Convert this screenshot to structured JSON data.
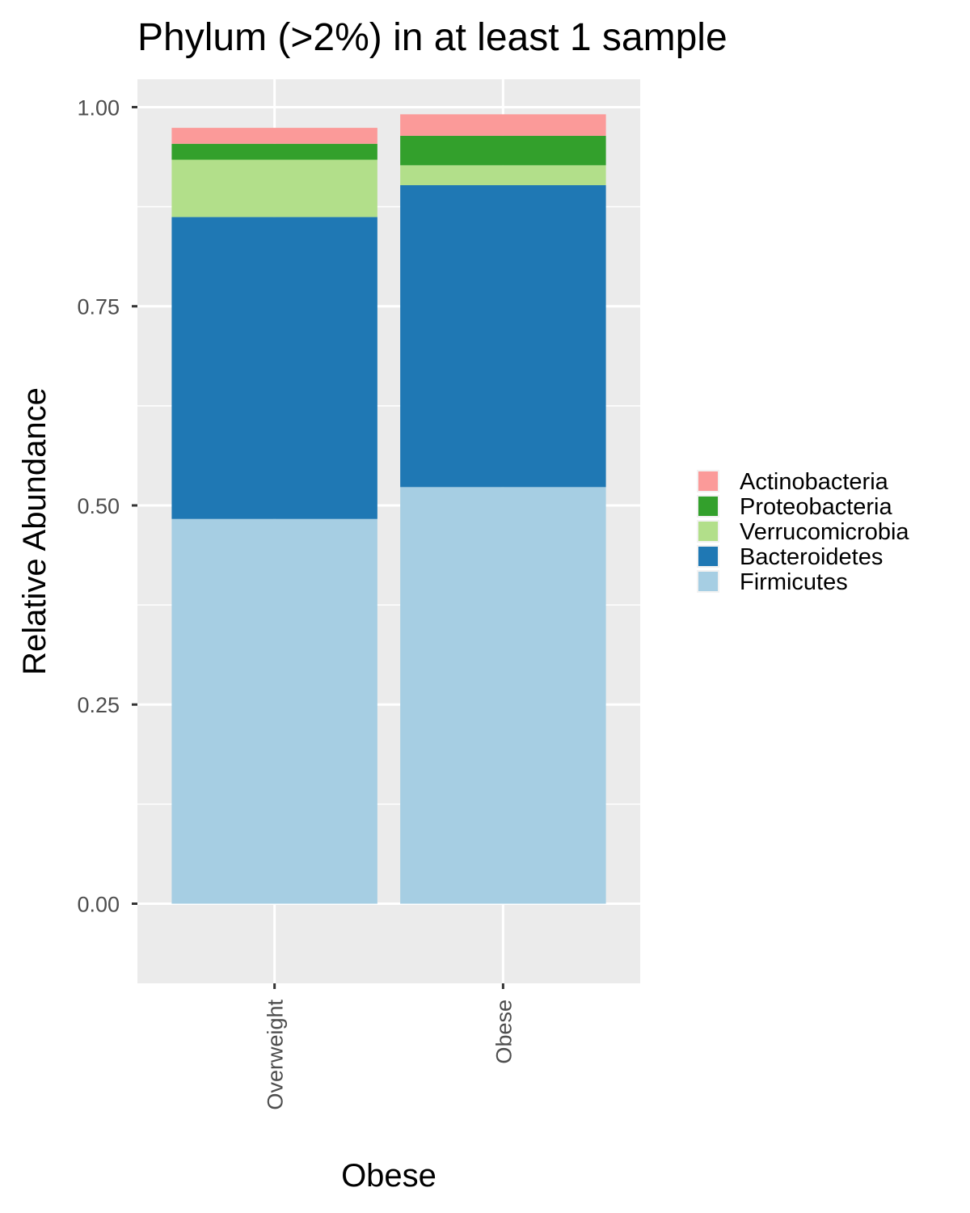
{
  "chart_data": {
    "type": "bar",
    "stacked": true,
    "title": "Phylum (>2%) in at least 1 sample",
    "xlabel": "Obese",
    "ylabel": "Relative Abundance",
    "categories": [
      "Overweight",
      "Obese"
    ],
    "ylim": [
      -0.1,
      1.035
    ],
    "yticks": [
      0.0,
      0.25,
      0.5,
      0.75,
      1.0
    ],
    "ytick_labels": [
      "0.00",
      "0.25",
      "0.50",
      "0.75",
      "1.00"
    ],
    "grid": true,
    "legend_position": "right",
    "series": [
      {
        "name": "Firmicutes",
        "color": "#A6CEE3",
        "values": [
          0.483,
          0.523
        ]
      },
      {
        "name": "Bacteroidetes",
        "color": "#1F78B4",
        "values": [
          0.379,
          0.379
        ]
      },
      {
        "name": "Verrucomicrobia",
        "color": "#B2DF8A",
        "values": [
          0.072,
          0.025
        ]
      },
      {
        "name": "Proteobacteria",
        "color": "#33A02C",
        "values": [
          0.02,
          0.037
        ]
      },
      {
        "name": "Actinobacteria",
        "color": "#FB9A99",
        "values": [
          0.02,
          0.027
        ]
      }
    ]
  }
}
